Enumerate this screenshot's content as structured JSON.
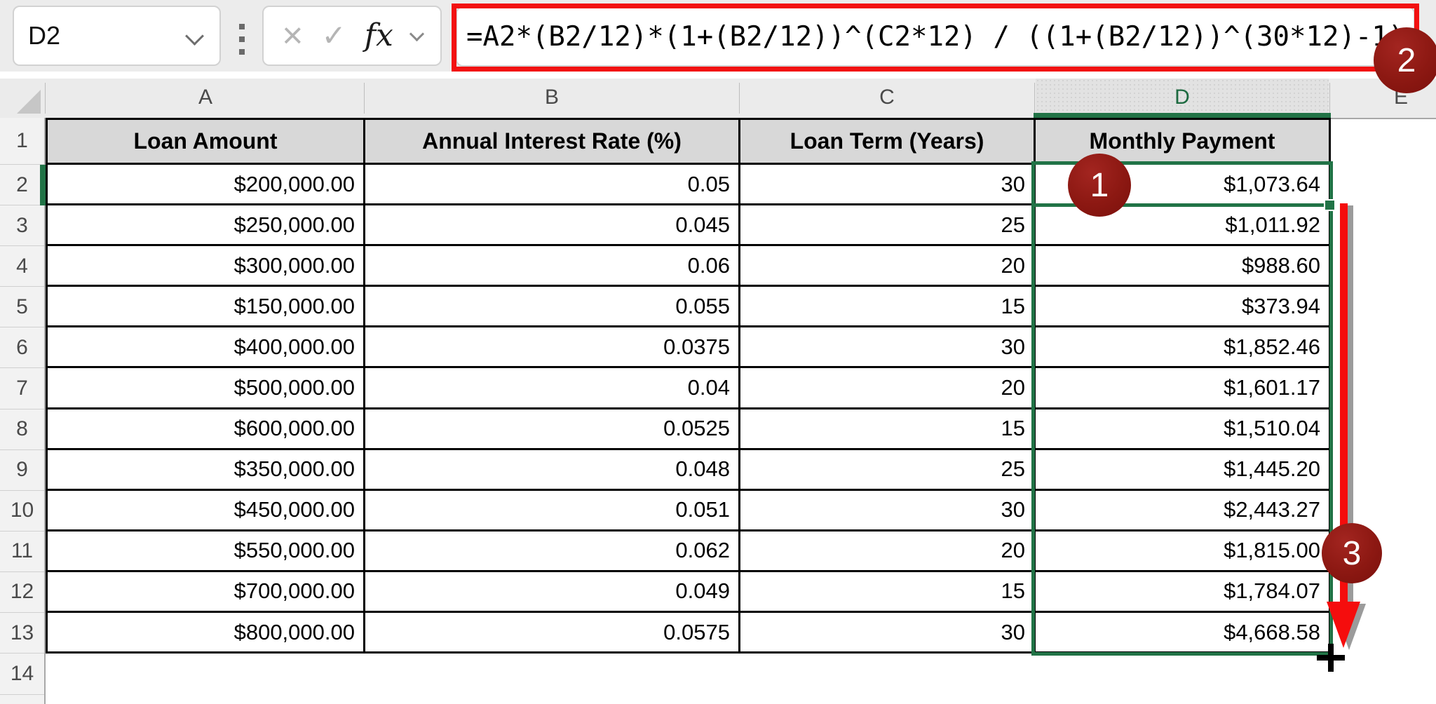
{
  "formula_bar": {
    "name_box_value": "D2",
    "cancel_glyph": "×",
    "enter_glyph": "✓",
    "function_label": "fx",
    "formula": "=A2*(B2/12)*(1+(B2/12))^(C2*12) / ((1+(B2/12))^(30*12)-1)"
  },
  "sheet": {
    "column_letters": [
      "A",
      "B",
      "C",
      "D",
      "E"
    ],
    "selected_column": "D",
    "row_numbers": [
      "1",
      "2",
      "3",
      "4",
      "5",
      "6",
      "7",
      "8",
      "9",
      "10",
      "11",
      "12",
      "13",
      "14"
    ],
    "selected_row": "2"
  },
  "table": {
    "headers": [
      "Loan Amount",
      "Annual Interest Rate (%)",
      "Loan Term (Years)",
      "Monthly Payment"
    ],
    "rows": [
      [
        "$200,000.00",
        "0.05",
        "30",
        "$1,073.64"
      ],
      [
        "$250,000.00",
        "0.045",
        "25",
        "$1,011.92"
      ],
      [
        "$300,000.00",
        "0.06",
        "20",
        "$988.60"
      ],
      [
        "$150,000.00",
        "0.055",
        "15",
        "$373.94"
      ],
      [
        "$400,000.00",
        "0.0375",
        "30",
        "$1,852.46"
      ],
      [
        "$500,000.00",
        "0.04",
        "20",
        "$1,601.17"
      ],
      [
        "$600,000.00",
        "0.0525",
        "15",
        "$1,510.04"
      ],
      [
        "$350,000.00",
        "0.048",
        "25",
        "$1,445.20"
      ],
      [
        "$450,000.00",
        "0.051",
        "30",
        "$2,443.27"
      ],
      [
        "$550,000.00",
        "0.062",
        "20",
        "$1,815.00"
      ],
      [
        "$700,000.00",
        "0.049",
        "15",
        "$1,784.07"
      ],
      [
        "$800,000.00",
        "0.0575",
        "30",
        "$4,668.58"
      ]
    ]
  },
  "annotations": {
    "badges": [
      {
        "label": "1"
      },
      {
        "label": "2"
      },
      {
        "label": "3"
      }
    ],
    "colors": {
      "badge_maroon": "#8C1812",
      "annotation_red": "#F21111",
      "selection_green": "#217346",
      "header_fill": "#D8D8D8"
    }
  }
}
